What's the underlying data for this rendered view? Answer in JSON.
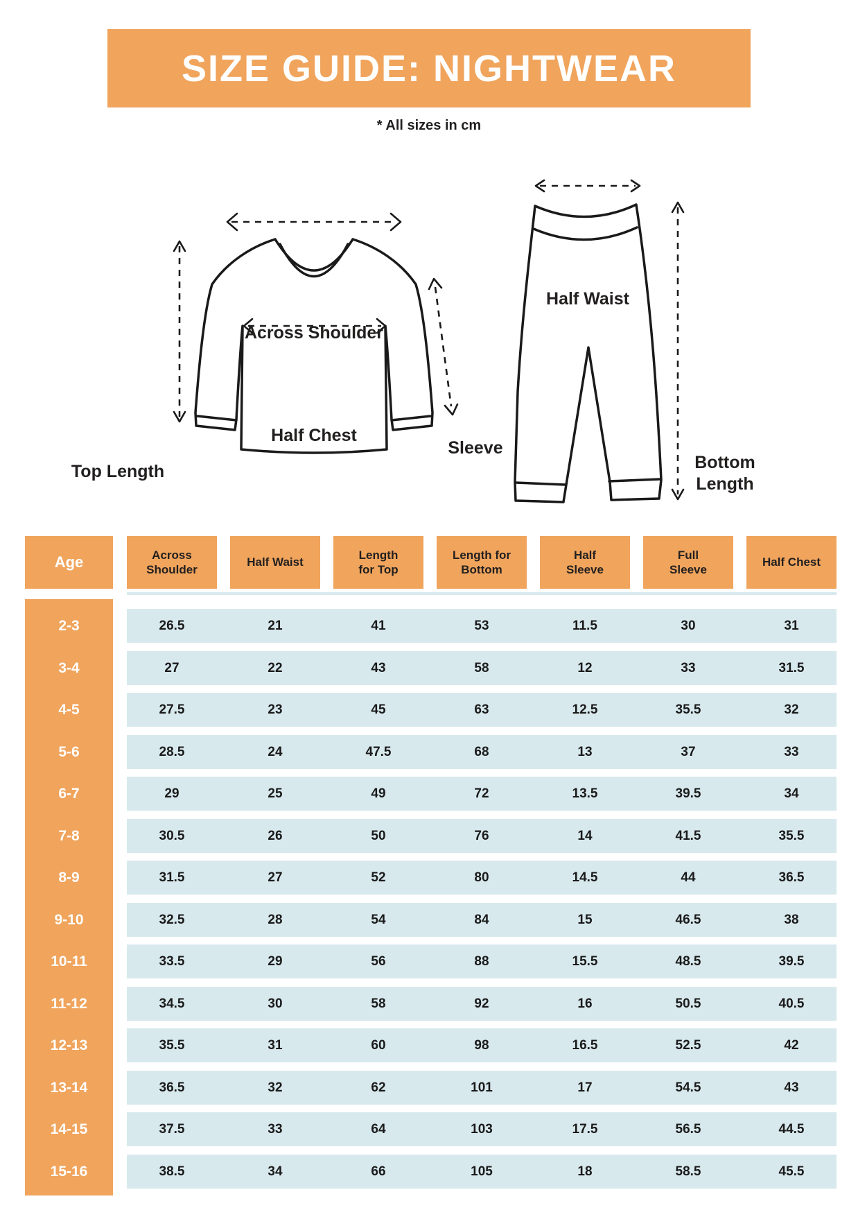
{
  "banner": {
    "title": "SIZE GUIDE: NIGHTWEAR"
  },
  "note": "* All sizes in cm",
  "colors": {
    "accent_orange": "#f0a45c",
    "row_blue": "#d8e9ee",
    "ink": "#221f1f",
    "white": "#ffffff"
  },
  "diagram": {
    "labels": {
      "across_shoulder": "Across Shoulder",
      "half_chest": "Half Chest",
      "top_length": "Top Length",
      "sleeve": "Sleeve",
      "half_waist": "Half Waist",
      "bottom_length": "Bottom Length"
    }
  },
  "table": {
    "columns": [
      "Age",
      "Across Shoulder",
      "Half Waist",
      "Length for Top",
      "Length for Bottom",
      "Half Sleeve",
      "Full Sleeve",
      "Half Chest"
    ],
    "rows": [
      {
        "age": "2-3",
        "values": [
          "26.5",
          "21",
          "41",
          "53",
          "11.5",
          "30",
          "31"
        ]
      },
      {
        "age": "3-4",
        "values": [
          "27",
          "22",
          "43",
          "58",
          "12",
          "33",
          "31.5"
        ]
      },
      {
        "age": "4-5",
        "values": [
          "27.5",
          "23",
          "45",
          "63",
          "12.5",
          "35.5",
          "32"
        ]
      },
      {
        "age": "5-6",
        "values": [
          "28.5",
          "24",
          "47.5",
          "68",
          "13",
          "37",
          "33"
        ]
      },
      {
        "age": "6-7",
        "values": [
          "29",
          "25",
          "49",
          "72",
          "13.5",
          "39.5",
          "34"
        ]
      },
      {
        "age": "7-8",
        "values": [
          "30.5",
          "26",
          "50",
          "76",
          "14",
          "41.5",
          "35.5"
        ]
      },
      {
        "age": "8-9",
        "values": [
          "31.5",
          "27",
          "52",
          "80",
          "14.5",
          "44",
          "36.5"
        ]
      },
      {
        "age": "9-10",
        "values": [
          "32.5",
          "28",
          "54",
          "84",
          "15",
          "46.5",
          "38"
        ]
      },
      {
        "age": "10-11",
        "values": [
          "33.5",
          "29",
          "56",
          "88",
          "15.5",
          "48.5",
          "39.5"
        ]
      },
      {
        "age": "11-12",
        "values": [
          "34.5",
          "30",
          "58",
          "92",
          "16",
          "50.5",
          "40.5"
        ]
      },
      {
        "age": "12-13",
        "values": [
          "35.5",
          "31",
          "60",
          "98",
          "16.5",
          "52.5",
          "42"
        ]
      },
      {
        "age": "13-14",
        "values": [
          "36.5",
          "32",
          "62",
          "101",
          "17",
          "54.5",
          "43"
        ]
      },
      {
        "age": "14-15",
        "values": [
          "37.5",
          "33",
          "64",
          "103",
          "17.5",
          "56.5",
          "44.5"
        ]
      },
      {
        "age": "15-16",
        "values": [
          "38.5",
          "34",
          "66",
          "105",
          "18",
          "58.5",
          "45.5"
        ]
      }
    ]
  }
}
